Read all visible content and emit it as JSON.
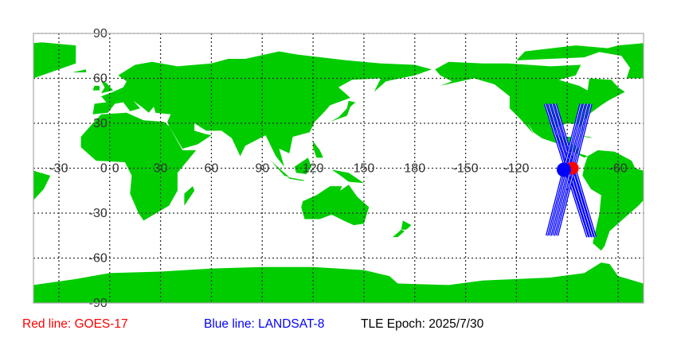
{
  "map": {
    "lon_range": [
      -45,
      315
    ],
    "lat_range": [
      -90,
      90
    ],
    "grid_interval_deg": 30,
    "lon_tick_labels": [
      "-30",
      "0",
      "30",
      "60",
      "90",
      "120",
      "150",
      "180",
      "-150",
      "-120",
      "-90",
      "-60"
    ],
    "lon_tick_values": [
      -30,
      0,
      30,
      60,
      90,
      120,
      150,
      180,
      210,
      240,
      270,
      300
    ],
    "lat_tick_labels": [
      "90",
      "60",
      "30",
      "0",
      "-30",
      "-60",
      "-90"
    ],
    "lat_tick_values": [
      90,
      60,
      30,
      0,
      -30,
      -60,
      -90
    ],
    "colors": {
      "land": "#00cc00",
      "ocean": "#ffffff",
      "grid": "#333333",
      "label": "#333333",
      "border": "#aaaaaa"
    }
  },
  "satellites": {
    "red": {
      "name": "GOES-17",
      "color": "#ff0000",
      "position": {
        "lon": -87,
        "lat": 0
      }
    },
    "blue": {
      "name": "LANDSAT-8",
      "color": "#0000ff",
      "position": {
        "lon": -92,
        "lat": -1
      },
      "tracks": [
        {
          "from": [
            -103,
            43
          ],
          "to": [
            -78,
            -46
          ]
        },
        {
          "from": [
            -101,
            43
          ],
          "to": [
            -76.5,
            -46
          ]
        },
        {
          "from": [
            -99,
            43
          ],
          "to": [
            -75,
            -46
          ]
        },
        {
          "from": [
            -97,
            43
          ],
          "to": [
            -73.5,
            -46
          ]
        },
        {
          "from": [
            -82,
            43
          ],
          "to": [
            -102,
            -45
          ]
        },
        {
          "from": [
            -80,
            43
          ],
          "to": [
            -100,
            -45
          ]
        },
        {
          "from": [
            -78,
            43
          ],
          "to": [
            -98,
            -45
          ]
        },
        {
          "from": [
            -76,
            43
          ],
          "to": [
            -96,
            -45
          ]
        }
      ]
    }
  },
  "legend": {
    "red_label": "Red line: GOES-17",
    "blue_label": "Blue line: LANDSAT-8",
    "epoch_label": "TLE Epoch: 2025/7/30"
  }
}
